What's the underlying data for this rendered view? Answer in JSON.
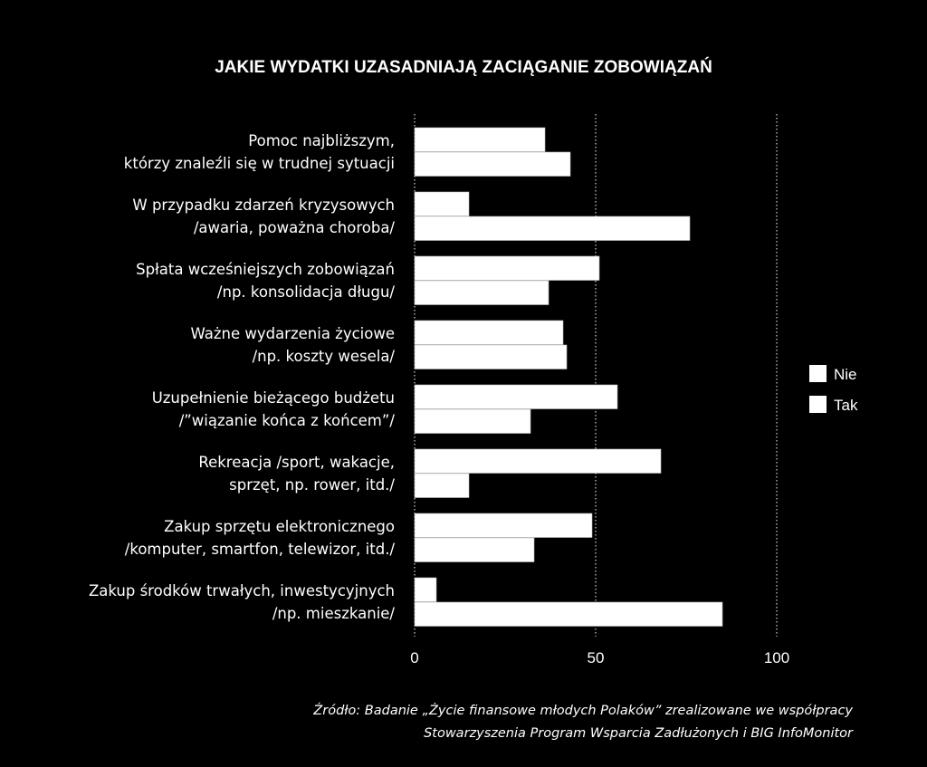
{
  "chart_data": {
    "type": "bar",
    "orientation": "horizontal",
    "title": "JAKIE WYDATKI UZASADNIAJĄ ZACIĄGANIE ZOBOWIĄZAŃ",
    "categories": [
      [
        "Pomoc najbliższym,",
        "którzy znaleźli się w trudnej sytuacji"
      ],
      [
        "W przypadku zdarzeń kryzysowych",
        "/awaria, poważna choroba/"
      ],
      [
        "Spłata wcześniejszych zobowiązań",
        "/np. konsolidacja długu/"
      ],
      [
        "Ważne wydarzenia życiowe",
        "/np. koszty wesela/"
      ],
      [
        "Uzupełnienie bieżącego budżetu",
        "/”wiązanie końca z końcem”/"
      ],
      [
        "Rekreacja /sport, wakacje,",
        "sprzęt, np. rower, itd./"
      ],
      [
        "Zakup sprzętu elektronicznego",
        "/komputer, smartfon, telewizor, itd./"
      ],
      [
        "Zakup środków trwałych, inwestycyjnych",
        "/np. mieszkanie/"
      ]
    ],
    "series": [
      {
        "name": "Nie",
        "color": "#ffffff",
        "values": [
          36,
          15,
          51,
          41,
          56,
          68,
          49,
          6
        ]
      },
      {
        "name": "Tak",
        "color": "#ffffff",
        "values": [
          43,
          76,
          37,
          42,
          32,
          15,
          33,
          85
        ]
      }
    ],
    "xlim": [
      0,
      100
    ],
    "xticks": [
      0,
      50,
      100
    ],
    "grid": true,
    "legend_position": "right",
    "xlabel": "",
    "ylabel": "",
    "source": [
      "Źródło: Badanie „Życie finansowe młodych Polaków” zrealizowane we współpracy",
      "Stowarzyszenia Program Wsparcia Zadłużonych i BIG InfoMonitor"
    ],
    "background_color": "#000000",
    "text_color": "#ffffff"
  }
}
